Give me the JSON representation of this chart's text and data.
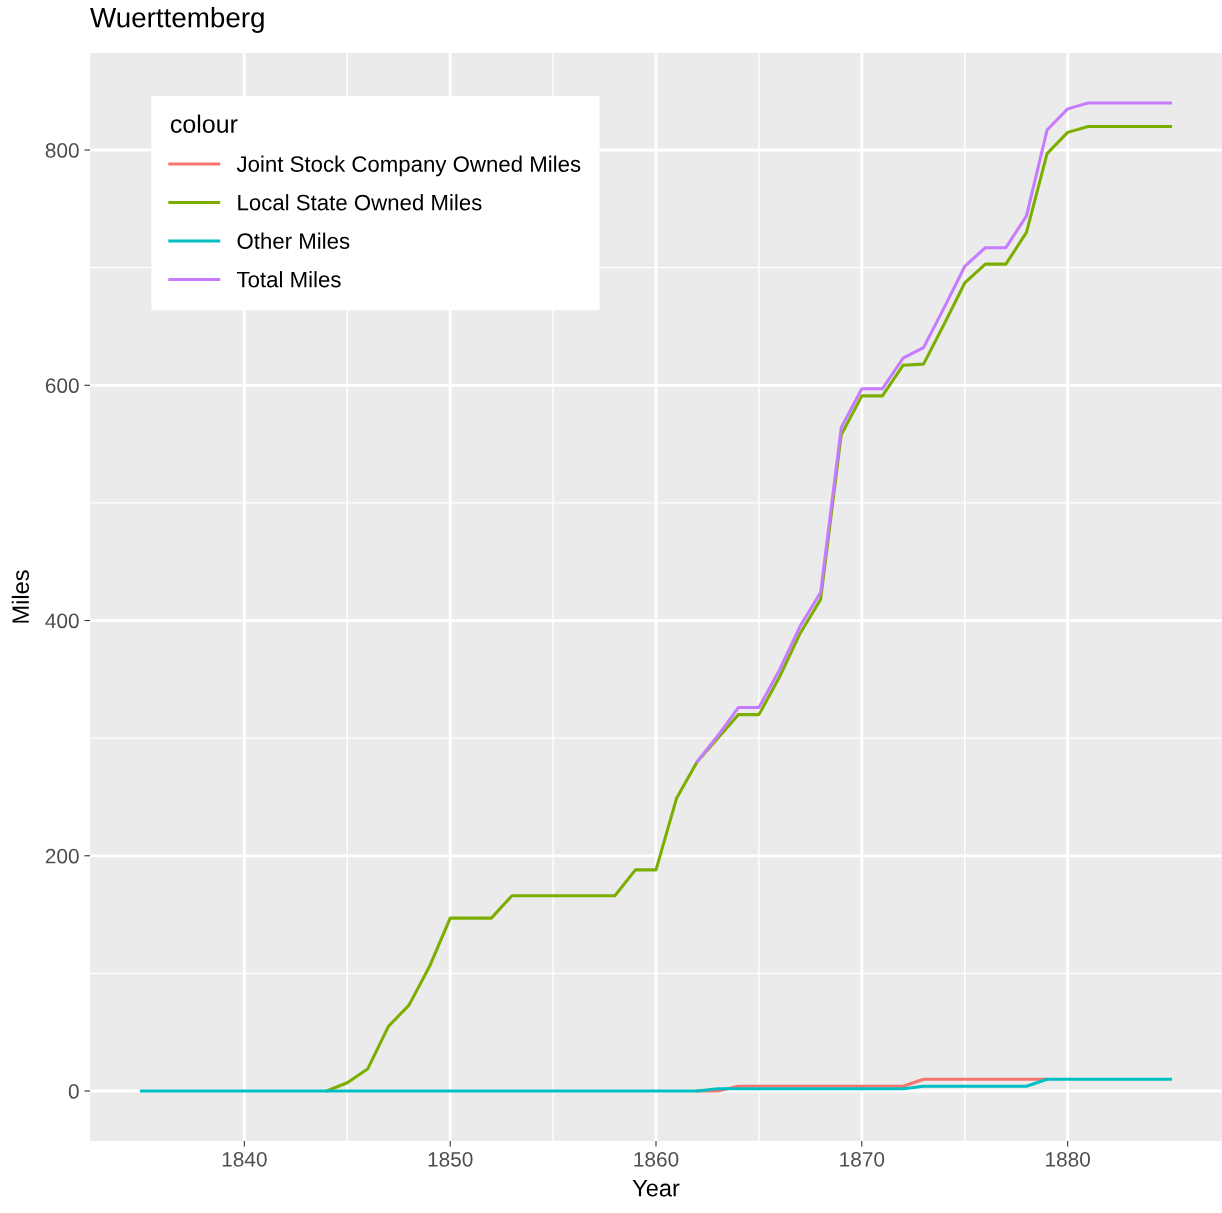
{
  "chart_data": {
    "type": "line",
    "title": "Wuerttemberg",
    "xlabel": "Year",
    "ylabel": "Miles",
    "legend_title": "colour",
    "legend": "top left",
    "grid": true,
    "x": [
      1835,
      1836,
      1837,
      1838,
      1839,
      1840,
      1841,
      1842,
      1843,
      1844,
      1845,
      1846,
      1847,
      1848,
      1849,
      1850,
      1851,
      1852,
      1853,
      1854,
      1855,
      1856,
      1857,
      1858,
      1859,
      1860,
      1861,
      1862,
      1863,
      1864,
      1865,
      1866,
      1867,
      1868,
      1869,
      1870,
      1871,
      1872,
      1873,
      1874,
      1875,
      1876,
      1877,
      1878,
      1879,
      1880,
      1881,
      1882,
      1883,
      1884,
      1885
    ],
    "series": [
      {
        "name": "Joint Stock Company Owned Miles",
        "color": "#f8766d",
        "values": [
          null,
          null,
          null,
          null,
          null,
          null,
          null,
          null,
          null,
          null,
          null,
          null,
          null,
          null,
          null,
          null,
          null,
          null,
          null,
          null,
          null,
          null,
          null,
          null,
          null,
          null,
          null,
          0,
          0,
          4,
          4,
          4,
          4,
          4,
          4,
          4,
          4,
          4,
          10,
          10,
          10,
          10,
          10,
          10,
          10,
          null,
          null,
          null,
          null,
          null,
          null
        ]
      },
      {
        "name": "Local State Owned Miles",
        "color": "#7cae00",
        "values": [
          null,
          null,
          null,
          null,
          null,
          null,
          null,
          null,
          null,
          0,
          7,
          19,
          55,
          73,
          106,
          147,
          147,
          147,
          166,
          166,
          166,
          166,
          166,
          166,
          188,
          188,
          249,
          280,
          300,
          320,
          320,
          352,
          389,
          418,
          558,
          591,
          591,
          617,
          618,
          652,
          687,
          703,
          703,
          730,
          797,
          815,
          820,
          820,
          820,
          820,
          820
        ]
      },
      {
        "name": "Other Miles",
        "color": "#00bfc4",
        "values": [
          0,
          0,
          0,
          0,
          0,
          0,
          0,
          0,
          0,
          0,
          0,
          0,
          0,
          0,
          0,
          0,
          0,
          0,
          0,
          0,
          0,
          0,
          0,
          0,
          0,
          0,
          0,
          0,
          2,
          2,
          2,
          2,
          2,
          2,
          2,
          2,
          2,
          2,
          4,
          4,
          4,
          4,
          4,
          4,
          10,
          10,
          10,
          10,
          10,
          10,
          10
        ]
      },
      {
        "name": "Total Miles",
        "color": "#c77cff",
        "values": [
          null,
          null,
          null,
          null,
          null,
          null,
          null,
          null,
          null,
          null,
          null,
          null,
          null,
          null,
          null,
          null,
          null,
          null,
          null,
          null,
          null,
          null,
          null,
          null,
          null,
          null,
          null,
          280,
          302,
          326,
          326,
          358,
          395,
          424,
          564,
          597,
          597,
          623,
          632,
          666,
          701,
          717,
          717,
          744,
          817,
          835,
          840,
          840,
          840,
          840,
          840
        ]
      }
    ],
    "xlim": [
      1832.5,
      1887.5
    ],
    "xticks": [
      1840,
      1850,
      1860,
      1870,
      1880
    ],
    "ylim": [
      -42.5,
      882.5
    ],
    "yticks": [
      0,
      200,
      400,
      600,
      800
    ]
  }
}
